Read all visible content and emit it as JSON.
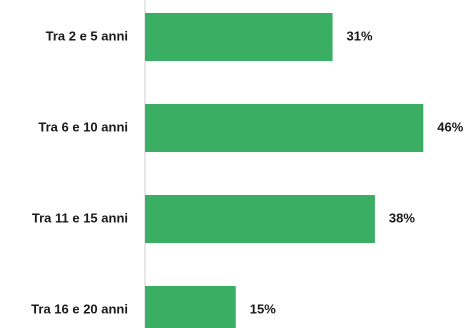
{
  "chart_data": {
    "type": "bar",
    "orientation": "horizontal",
    "categories": [
      "Tra 2 e 5 anni",
      "Tra 6 e 10 anni",
      "Tra 11 e 15 anni",
      "Tra 16 e 20 anni"
    ],
    "values": [
      31,
      46,
      38,
      15
    ],
    "value_labels": [
      "31%",
      "46%",
      "38%",
      "15%"
    ],
    "unit": "%",
    "xlim": [
      0,
      50
    ],
    "grid": false,
    "bar_color": "#3aae63",
    "axis_color": "#cfcfcf"
  }
}
